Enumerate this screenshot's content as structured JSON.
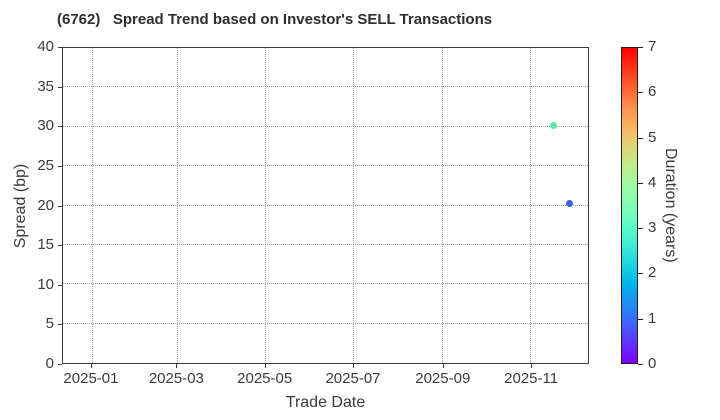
{
  "figure": {
    "title": "(6762)   Spread Trend based on Investor's SELL Transactions",
    "background_color": "#ffffff",
    "text_color": "#3a3a3a",
    "grid_color": "#9a9a9a",
    "spine_color": "#3a3a3a"
  },
  "chart_data": {
    "type": "scatter",
    "title": "(6762)   Spread Trend based on Investor's SELL Transactions",
    "xlabel": "Trade Date",
    "ylabel": "Spread (bp)",
    "ylim": [
      0,
      40
    ],
    "xlim": [
      "2024-12-12",
      "2025-12-11"
    ],
    "grid": true,
    "grid_style": "dotted",
    "legend": "none",
    "y_ticks": [
      0,
      5,
      10,
      15,
      20,
      25,
      30,
      35,
      40
    ],
    "x_ticks": [
      {
        "date": "2025-01-01",
        "label": "2025-01"
      },
      {
        "date": "2025-03-01",
        "label": "2025-03"
      },
      {
        "date": "2025-05-01",
        "label": "2025-05"
      },
      {
        "date": "2025-07-01",
        "label": "2025-07"
      },
      {
        "date": "2025-09-01",
        "label": "2025-09"
      },
      {
        "date": "2025-11-01",
        "label": "2025-11"
      }
    ],
    "points": [
      {
        "trade_date": "2025-11-17",
        "spread_bp": 30.1,
        "duration_years": 3.2,
        "color": "#55e8a9"
      },
      {
        "trade_date": "2025-11-28",
        "spread_bp": 20.3,
        "duration_years": 1.1,
        "color": "#3c63e2"
      }
    ],
    "colorbar": {
      "label": "Duration (years)",
      "min": 0,
      "max": 7,
      "ticks": [
        0,
        1,
        2,
        3,
        4,
        5,
        6,
        7
      ],
      "colormap": "rainbow",
      "position": "right"
    }
  }
}
